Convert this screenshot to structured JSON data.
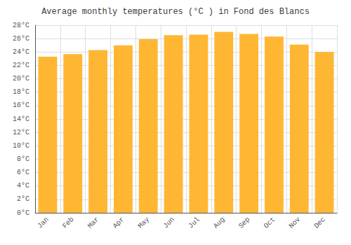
{
  "chart_data": {
    "type": "bar",
    "title": "Average monthly temperatures (°C ) in Fond des Blancs",
    "categories": [
      "Jan",
      "Feb",
      "Mar",
      "Apr",
      "May",
      "Jun",
      "Jul",
      "Aug",
      "Sep",
      "Oct",
      "Nov",
      "Dec"
    ],
    "values": [
      23.3,
      23.7,
      24.3,
      25.0,
      25.9,
      26.5,
      26.6,
      27.0,
      26.7,
      26.3,
      25.1,
      24.0
    ],
    "color": "#FFB733",
    "ylim": [
      0,
      28
    ],
    "yticks": [
      {
        "value": 0,
        "label": "0°C"
      },
      {
        "value": 2,
        "label": "2°C"
      },
      {
        "value": 4,
        "label": "4°C"
      },
      {
        "value": 6,
        "label": "6°C"
      },
      {
        "value": 8,
        "label": "8°C"
      },
      {
        "value": 10,
        "label": "10°C"
      },
      {
        "value": 12,
        "label": "12°C"
      },
      {
        "value": 14,
        "label": "14°C"
      },
      {
        "value": 16,
        "label": "16°C"
      },
      {
        "value": 18,
        "label": "18°C"
      },
      {
        "value": 20,
        "label": "20°C"
      },
      {
        "value": 22,
        "label": "22°C"
      },
      {
        "value": 24,
        "label": "24°C"
      },
      {
        "value": 26,
        "label": "26°C"
      },
      {
        "value": 28,
        "label": "28°C"
      }
    ],
    "grid": true
  }
}
